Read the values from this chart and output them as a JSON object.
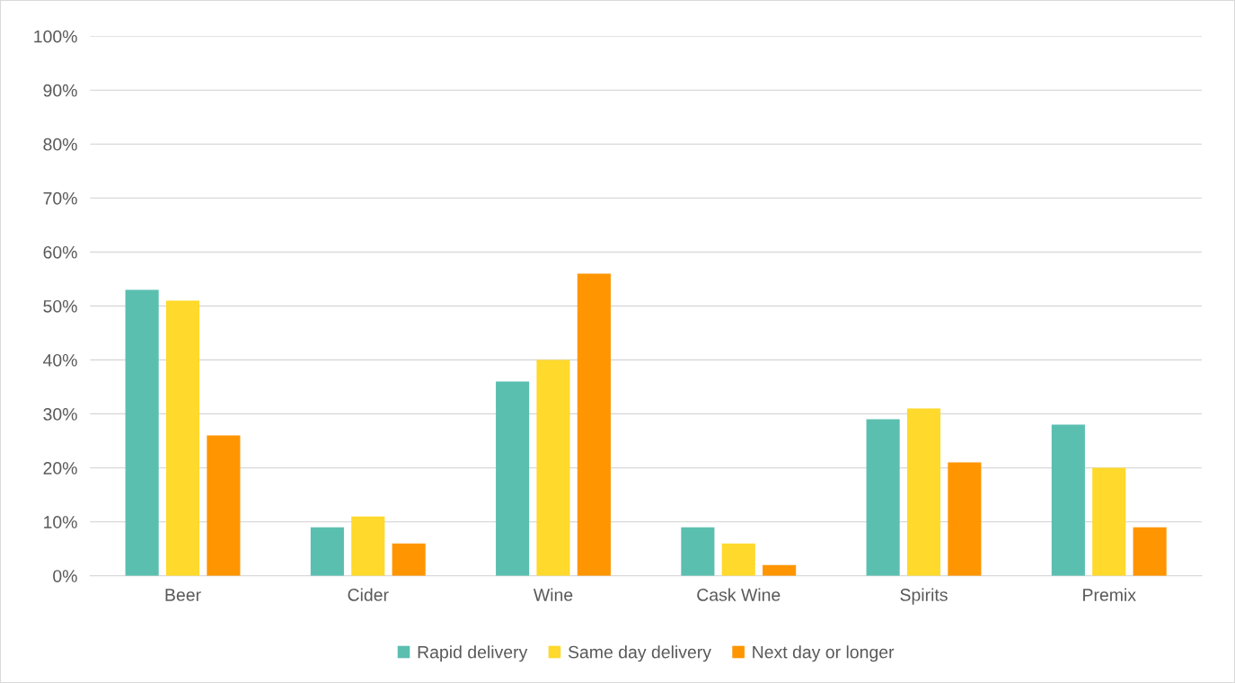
{
  "chart_data": {
    "type": "bar",
    "categories": [
      "Beer",
      "Cider",
      "Wine",
      "Cask Wine",
      "Spirits",
      "Premix"
    ],
    "series": [
      {
        "name": "Rapid delivery",
        "color": "#5bbfb0",
        "values": [
          53,
          9,
          36,
          9,
          29,
          28
        ]
      },
      {
        "name": "Same day delivery",
        "color": "#ffd92b",
        "values": [
          51,
          11,
          40,
          6,
          31,
          20
        ]
      },
      {
        "name": "Next day or longer",
        "color": "#ff9500",
        "values": [
          26,
          6,
          56,
          2,
          21,
          9
        ]
      }
    ],
    "ylim": [
      0,
      100
    ],
    "yticks": [
      {
        "value": 0,
        "label": "0%"
      },
      {
        "value": 10,
        "label": "10%"
      },
      {
        "value": 20,
        "label": "20%"
      },
      {
        "value": 30,
        "label": "30%"
      },
      {
        "value": 40,
        "label": "40%"
      },
      {
        "value": 50,
        "label": "50%"
      },
      {
        "value": 60,
        "label": "60%"
      },
      {
        "value": 70,
        "label": "70%"
      },
      {
        "value": 80,
        "label": "80%"
      },
      {
        "value": 90,
        "label": "90%"
      },
      {
        "value": 100,
        "label": "100%"
      }
    ],
    "grid": "y",
    "legend": "bottom"
  }
}
